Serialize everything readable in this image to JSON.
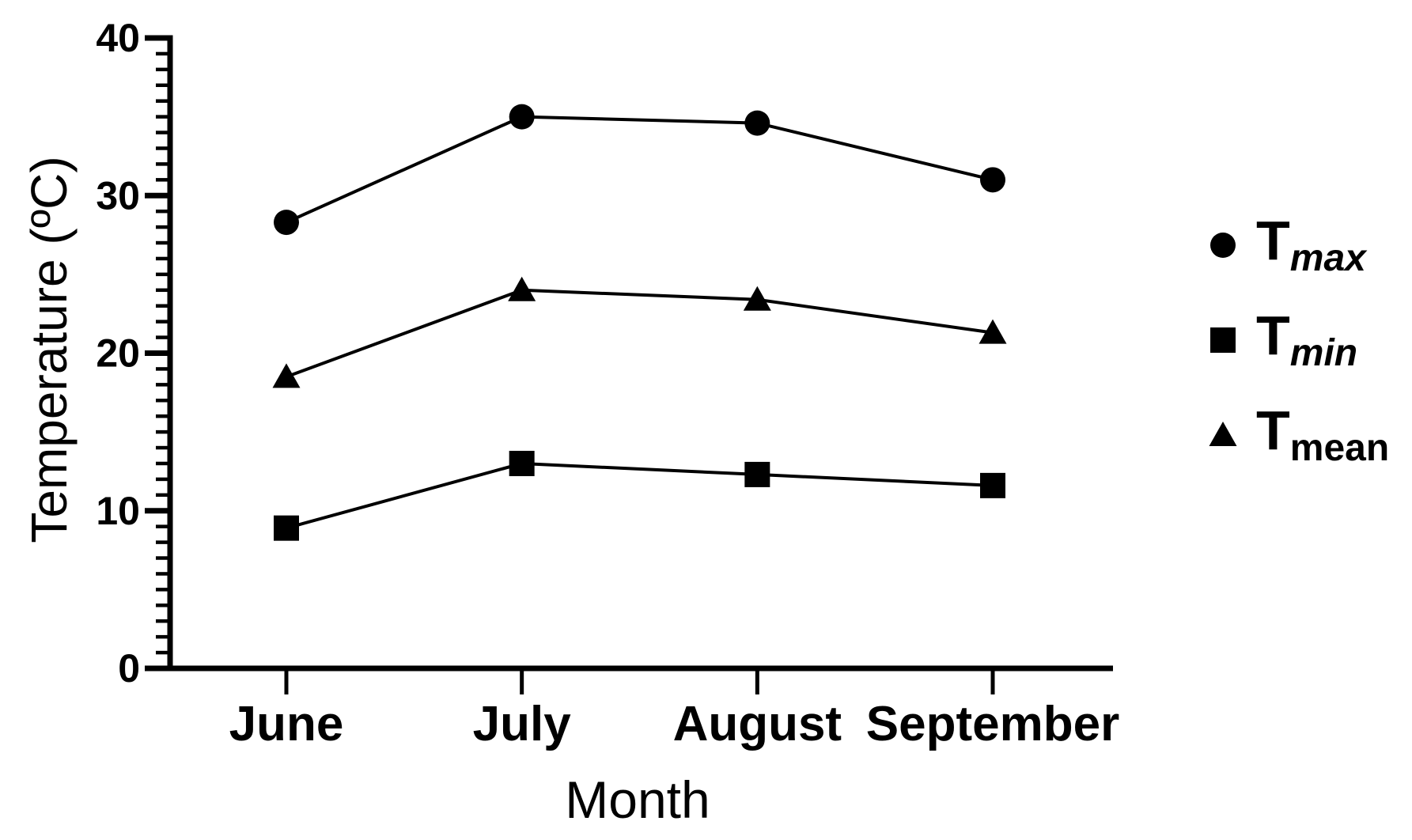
{
  "chart_data": {
    "type": "line",
    "title": "",
    "xlabel": "Month",
    "ylabel": "Temperature (ºC)",
    "categories": [
      "June",
      "July",
      "August",
      "September"
    ],
    "series": [
      {
        "name": "Tmax",
        "label_base": "T",
        "label_sub": "max",
        "sub_italic": true,
        "marker": "circle",
        "values": [
          28.3,
          35.0,
          34.6,
          31.0
        ]
      },
      {
        "name": "Tmin",
        "label_base": "T",
        "label_sub": "min",
        "sub_italic": true,
        "marker": "square",
        "values": [
          8.9,
          13.0,
          12.3,
          11.6
        ]
      },
      {
        "name": "Tmean",
        "label_base": "T",
        "label_sub": "mean",
        "sub_italic": false,
        "marker": "triangle",
        "values": [
          18.5,
          24.0,
          23.4,
          21.3
        ]
      }
    ],
    "ylim": [
      0,
      40
    ],
    "y_major_tick": 10,
    "y_minor_tick": 1,
    "y_tick_labels": [
      "0",
      "10",
      "20",
      "30",
      "40"
    ],
    "legend_position": "right",
    "grid": false,
    "line_color": "#000000",
    "marker_color": "#000000",
    "background": "#ffffff"
  }
}
